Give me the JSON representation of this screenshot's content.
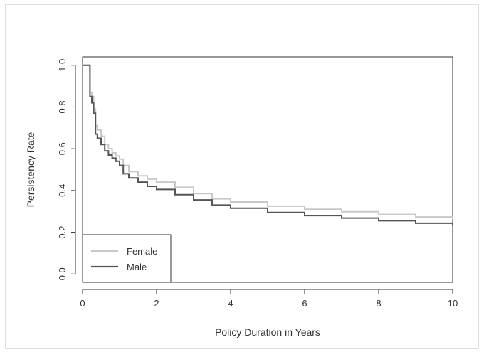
{
  "chart_data": {
    "type": "line",
    "title": "",
    "xlabel": "Policy Duration in Years",
    "ylabel": "Persistency Rate",
    "xlim": [
      0,
      10
    ],
    "ylim": [
      0,
      1
    ],
    "xticks": [
      "0",
      "2",
      "4",
      "6",
      "8",
      "10"
    ],
    "yticks": [
      "0.0",
      "0.2",
      "0.4",
      "0.6",
      "0.8",
      "1.0"
    ],
    "grid": false,
    "legend_position": "bottom-left",
    "series": [
      {
        "name": "Female",
        "color": "#c8c8c8",
        "x": [
          0,
          0.18,
          0.2,
          0.25,
          0.3,
          0.35,
          0.4,
          0.5,
          0.6,
          0.7,
          0.8,
          0.9,
          1.0,
          1.1,
          1.25,
          1.5,
          1.75,
          2.0,
          2.5,
          3.0,
          3.5,
          4.0,
          5.0,
          6.0,
          7.0,
          8.0,
          9.0,
          10.0
        ],
        "y": [
          1.0,
          1.0,
          0.87,
          0.85,
          0.79,
          0.71,
          0.69,
          0.66,
          0.62,
          0.6,
          0.58,
          0.565,
          0.55,
          0.52,
          0.49,
          0.47,
          0.455,
          0.44,
          0.415,
          0.385,
          0.36,
          0.345,
          0.325,
          0.31,
          0.298,
          0.285,
          0.273,
          0.262
        ]
      },
      {
        "name": "Male",
        "color": "#555555",
        "x": [
          0,
          0.18,
          0.2,
          0.25,
          0.3,
          0.35,
          0.4,
          0.5,
          0.6,
          0.7,
          0.8,
          0.9,
          1.0,
          1.1,
          1.25,
          1.5,
          1.75,
          2.0,
          2.5,
          3.0,
          3.5,
          4.0,
          5.0,
          6.0,
          7.0,
          8.0,
          9.0,
          10.0
        ],
        "y": [
          1.0,
          1.0,
          0.85,
          0.82,
          0.77,
          0.67,
          0.65,
          0.62,
          0.59,
          0.57,
          0.555,
          0.54,
          0.52,
          0.48,
          0.46,
          0.44,
          0.42,
          0.405,
          0.38,
          0.355,
          0.33,
          0.315,
          0.295,
          0.28,
          0.268,
          0.255,
          0.243,
          0.232
        ]
      }
    ]
  }
}
